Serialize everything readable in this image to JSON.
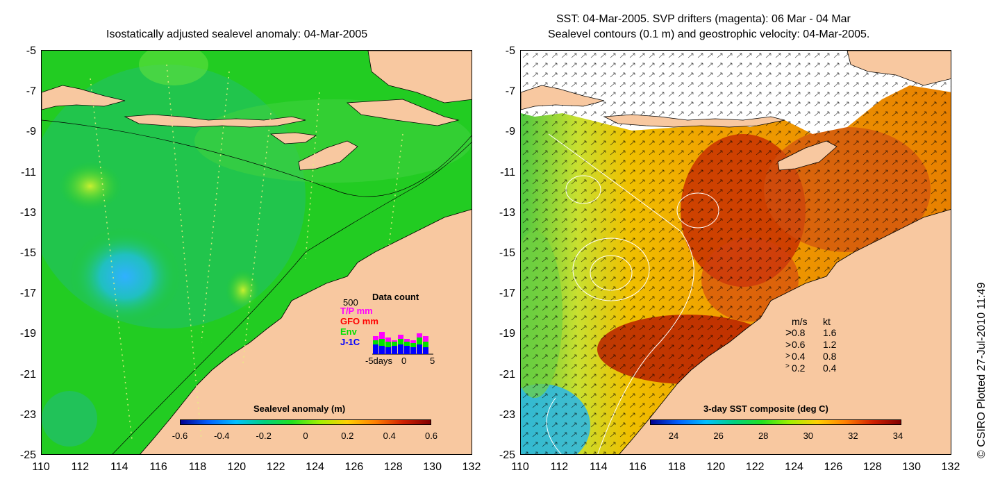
{
  "left_panel": {
    "title": "Isostatically adjusted sealevel anomaly: 04-Mar-2005",
    "colorbar": {
      "label": "Sealevel anomaly (m)",
      "ticks": [
        "-0.6",
        "-0.4",
        "-0.2",
        "0",
        "0.2",
        "0.4",
        "0.6"
      ]
    },
    "data_count": {
      "title": "Data count",
      "max_label": "500",
      "legend": [
        {
          "name": "T/P mm",
          "color": "#ff00ff"
        },
        {
          "name": "GFO mm",
          "color": "#ff0000"
        },
        {
          "name": "Env",
          "color": "#00e000"
        },
        {
          "name": "J-1C",
          "color": "#0000ff"
        }
      ],
      "x_labels": [
        "-5days",
        "0",
        "5"
      ]
    }
  },
  "right_panel": {
    "title_line1": "SST: 04-Mar-2005. SVP drifters (magenta): 06 Mar - 04 Mar",
    "title_line2": "Sealevel contours (0.1 m) and geostrophic velocity: 04-Mar-2005.",
    "colorbar": {
      "label": "3-day SST composite (deg C)",
      "ticks": [
        "24",
        "26",
        "28",
        "30",
        "32",
        "34"
      ]
    },
    "velocity_legend": {
      "header_ms": "m/s",
      "header_kt": "kt",
      "rows": [
        {
          "ms": "0.8",
          "kt": "1.6"
        },
        {
          "ms": "0.6",
          "kt": "1.2"
        },
        {
          "ms": "0.4",
          "kt": "0.8"
        },
        {
          "ms": "0.2",
          "kt": "0.4"
        }
      ]
    }
  },
  "y_ticks": [
    "-5",
    "-7",
    "-9",
    "-11",
    "-13",
    "-15",
    "-17",
    "-19",
    "-21",
    "-23",
    "-25"
  ],
  "x_ticks": [
    "110",
    "112",
    "114",
    "116",
    "118",
    "120",
    "122",
    "124",
    "126",
    "128",
    "130",
    "132"
  ],
  "credit": "© CSIRO Plotted 27-Jul-2010 11:49",
  "colors": {
    "land": "#f8c8a0",
    "sea_green": "#22cc22",
    "sst_orange": "#f0a000",
    "sst_red": "#c83000"
  }
}
